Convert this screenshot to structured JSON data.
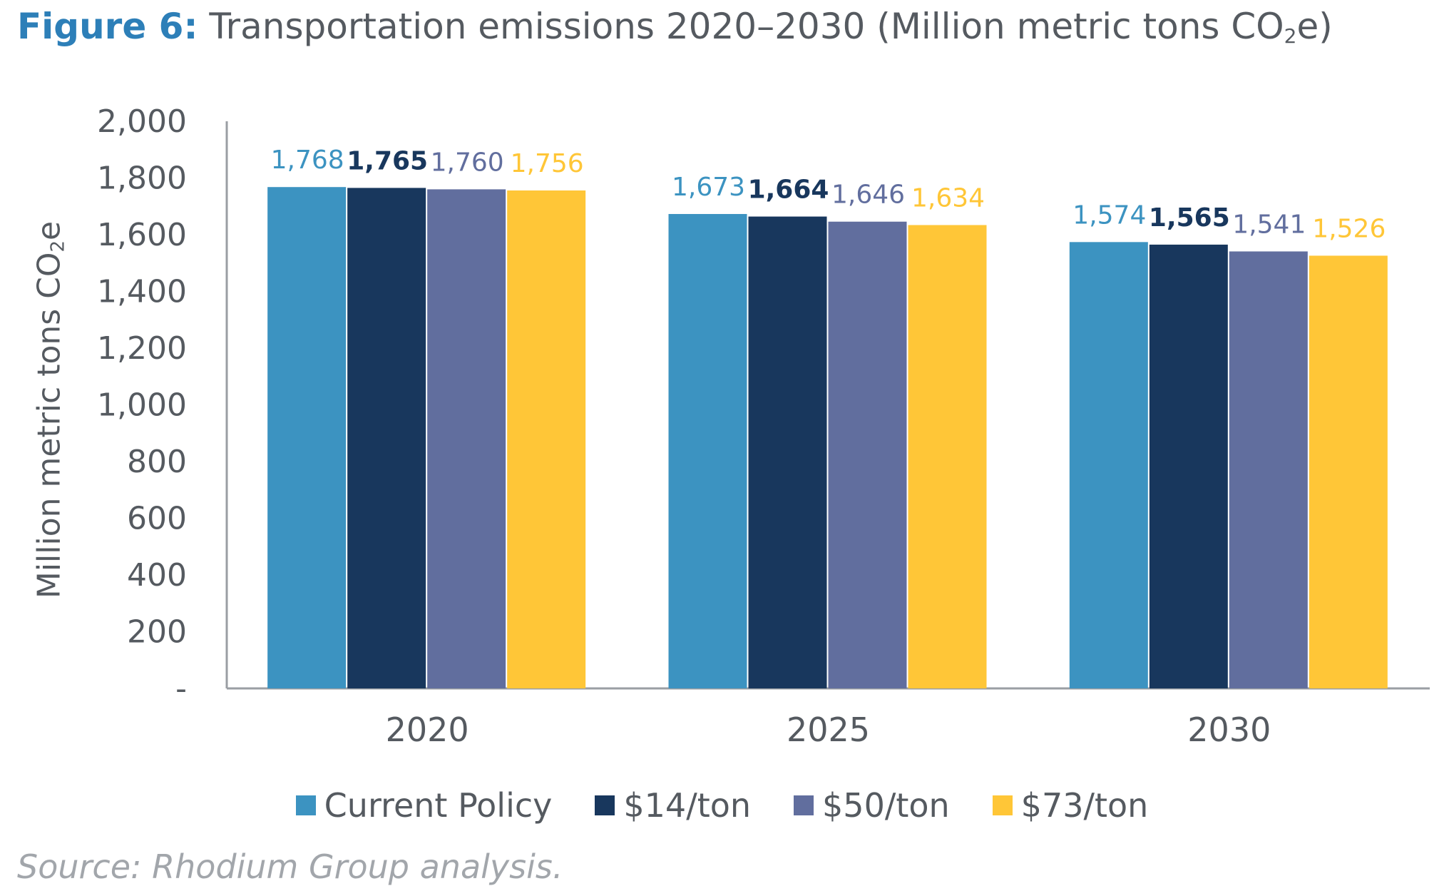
{
  "figure": {
    "label": "Figure 6:",
    "title_main": "Transportation emissions 2020–2030 (Million metric tons CO",
    "title_sub": "2",
    "title_end": "e)"
  },
  "source": "Source: Rhodium Group analysis.",
  "colors": {
    "Current Policy": "#3c93c1",
    "$14/ton": "#18375d",
    "$50/ton": "#616e9e",
    "$73/ton": "#ffc637",
    "axis": "#9a9ea3",
    "text": "#555a60"
  },
  "chart_data": {
    "type": "bar",
    "title": "Transportation emissions 2020–2030 (Million metric tons CO2e)",
    "ylabel_main": "Million metric tons CO",
    "ylabel_sub": "2",
    "ylabel_end": "e",
    "xlabel": "",
    "ylim": [
      0,
      2000
    ],
    "yticks": [
      "-",
      "200",
      "400",
      "600",
      "800",
      "1,000",
      "1,200",
      "1,400",
      "1,600",
      "1,800",
      "2,000"
    ],
    "categories": [
      "2020",
      "2025",
      "2030"
    ],
    "series": [
      {
        "name": "Current Policy",
        "values": [
          1768,
          1673,
          1574
        ],
        "labels": [
          "1,768",
          "1,673",
          "1,574"
        ]
      },
      {
        "name": "$14/ton",
        "values": [
          1765,
          1664,
          1565
        ],
        "labels": [
          "1,765",
          "1,664",
          "1,565"
        ]
      },
      {
        "name": "$50/ton",
        "values": [
          1760,
          1646,
          1541
        ],
        "labels": [
          "1,760",
          "1,646",
          "1,541"
        ]
      },
      {
        "name": "$73/ton",
        "values": [
          1756,
          1634,
          1526
        ],
        "labels": [
          "1,756",
          "1,634",
          "1,526"
        ]
      }
    ],
    "legend_position": "bottom",
    "grid": false
  }
}
